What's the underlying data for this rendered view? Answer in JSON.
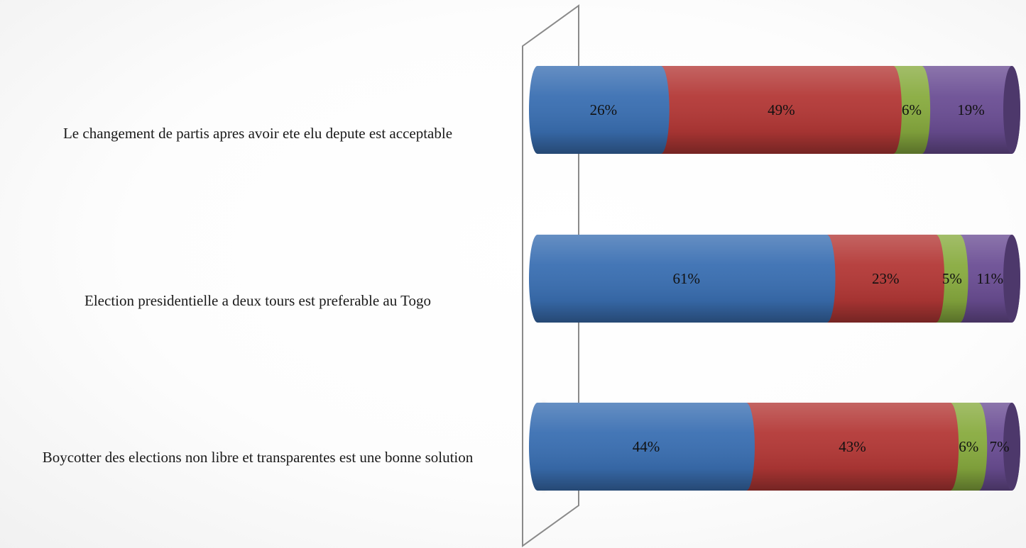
{
  "chart_data": {
    "type": "bar",
    "orientation": "horizontal",
    "stacked": "percent",
    "style": "3d-cylinder",
    "categories": [
      "Le changement de partis apres avoir ete elu depute est acceptable",
      "Election presidentielle a deux tours est preferable au Togo",
      "Boycotter des elections non libre et transparentes est une bonne solution"
    ],
    "series": [
      {
        "values": [
          26,
          61,
          44
        ],
        "labels": [
          "26%",
          "61%",
          "44%"
        ],
        "color": "#3a6fb2"
      },
      {
        "values": [
          49,
          23,
          43
        ],
        "labels": [
          "49%",
          "23%",
          "43%"
        ],
        "color": "#b33836"
      },
      {
        "values": [
          6,
          5,
          6
        ],
        "labels": [
          "6%",
          "5%",
          "6%"
        ],
        "color": "#88ab3f"
      },
      {
        "values": [
          19,
          11,
          7
        ],
        "labels": [
          "19%",
          "11%",
          "7%"
        ],
        "color": "#6b4e94"
      }
    ],
    "xlim": [
      0,
      100
    ],
    "legend": "none",
    "grid": false
  }
}
